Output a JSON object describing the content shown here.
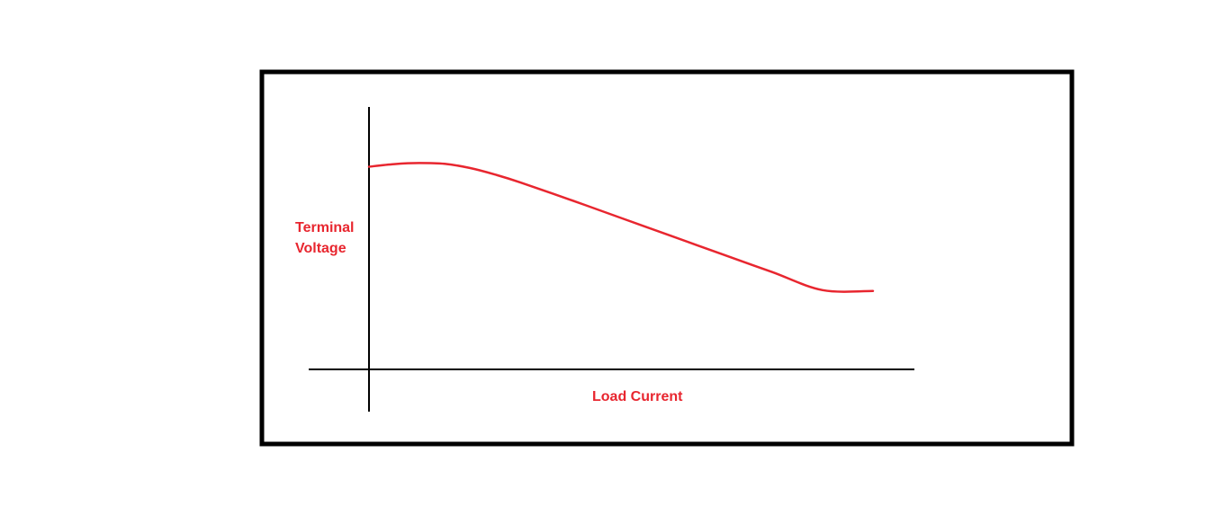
{
  "chart_data": {
    "type": "line",
    "title": "",
    "xlabel": "Load Current",
    "ylabel_lines": [
      "Terminal",
      "Voltage"
    ],
    "xlim": [
      0,
      100
    ],
    "ylim": [
      0,
      100
    ],
    "grid": false,
    "legend": "none",
    "series": [
      {
        "color": "#e8262f",
        "x": [
          0,
          5,
          10,
          15,
          20,
          25,
          30,
          40,
          50,
          60,
          70,
          80,
          90,
          100
        ],
        "y": [
          77.5,
          78.5,
          78.9,
          78.6,
          77.0,
          74.5,
          71.5,
          64.8,
          57.9,
          51.0,
          44.1,
          37.2,
          30.3,
          30.0
        ]
      }
    ]
  },
  "colors": {
    "frame": "#000000",
    "axis": "#000000",
    "label": "#e8262f",
    "curve": "#e8262f"
  }
}
